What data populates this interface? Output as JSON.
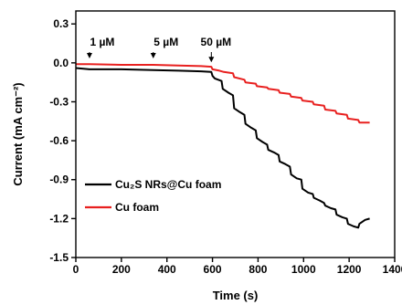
{
  "chart_data": {
    "type": "line",
    "title": "",
    "xlabel": "Time (s)",
    "ylabel": "Current (mA cm⁻²)",
    "xlim": [
      0,
      1400
    ],
    "ylim": [
      -1.5,
      0.4
    ],
    "xticks": [
      0,
      200,
      400,
      600,
      800,
      1000,
      1200,
      1400
    ],
    "yticks": [
      -1.5,
      -1.2,
      -0.9,
      -0.6,
      -0.3,
      0.0,
      0.3
    ],
    "ytick_labels": [
      "-1.5",
      "-1.2",
      "-0.9",
      "-0.6",
      "-0.3",
      "0.0",
      "0.3"
    ],
    "grid": false,
    "legend_position": "lower-left",
    "annotations": [
      {
        "text": "1 µM",
        "x": 60,
        "y": 0.02
      },
      {
        "text": "5 µM",
        "x": 340,
        "y": 0.02
      },
      {
        "text": "50 µM",
        "x": 595,
        "y": -0.01
      }
    ],
    "series": [
      {
        "name": "Cu₂S NRs@Cu foam",
        "color": "#000000",
        "x": [
          0,
          60,
          200,
          340,
          450,
          550,
          595,
          600,
          610,
          640,
          645,
          670,
          690,
          695,
          720,
          740,
          745,
          770,
          790,
          795,
          820,
          840,
          845,
          870,
          890,
          895,
          920,
          940,
          945,
          970,
          990,
          995,
          1020,
          1040,
          1045,
          1070,
          1090,
          1095,
          1120,
          1140,
          1145,
          1170,
          1190,
          1195,
          1220,
          1240,
          1245,
          1270,
          1290
        ],
        "y": [
          -0.04,
          -0.05,
          -0.05,
          -0.055,
          -0.06,
          -0.065,
          -0.07,
          -0.1,
          -0.12,
          -0.14,
          -0.2,
          -0.23,
          -0.25,
          -0.35,
          -0.38,
          -0.4,
          -0.47,
          -0.5,
          -0.52,
          -0.58,
          -0.61,
          -0.63,
          -0.67,
          -0.69,
          -0.71,
          -0.76,
          -0.78,
          -0.8,
          -0.86,
          -0.89,
          -0.9,
          -0.97,
          -1.0,
          -1.01,
          -1.04,
          -1.06,
          -1.08,
          -1.1,
          -1.12,
          -1.13,
          -1.17,
          -1.19,
          -1.2,
          -1.24,
          -1.26,
          -1.27,
          -1.24,
          -1.21,
          -1.2
        ]
      },
      {
        "name": "Cu foam",
        "color": "#e8201f",
        "x": [
          0,
          60,
          200,
          340,
          450,
          550,
          595,
          600,
          630,
          650,
          690,
          695,
          740,
          745,
          790,
          795,
          840,
          845,
          890,
          895,
          940,
          945,
          990,
          995,
          1040,
          1045,
          1090,
          1095,
          1140,
          1145,
          1190,
          1195,
          1240,
          1245,
          1290
        ],
        "y": [
          -0.01,
          -0.01,
          -0.015,
          -0.015,
          -0.02,
          -0.025,
          -0.03,
          -0.05,
          -0.06,
          -0.07,
          -0.08,
          -0.11,
          -0.13,
          -0.15,
          -0.16,
          -0.18,
          -0.19,
          -0.2,
          -0.21,
          -0.23,
          -0.24,
          -0.26,
          -0.27,
          -0.29,
          -0.3,
          -0.32,
          -0.33,
          -0.36,
          -0.37,
          -0.39,
          -0.4,
          -0.43,
          -0.44,
          -0.46,
          -0.46
        ]
      }
    ]
  }
}
